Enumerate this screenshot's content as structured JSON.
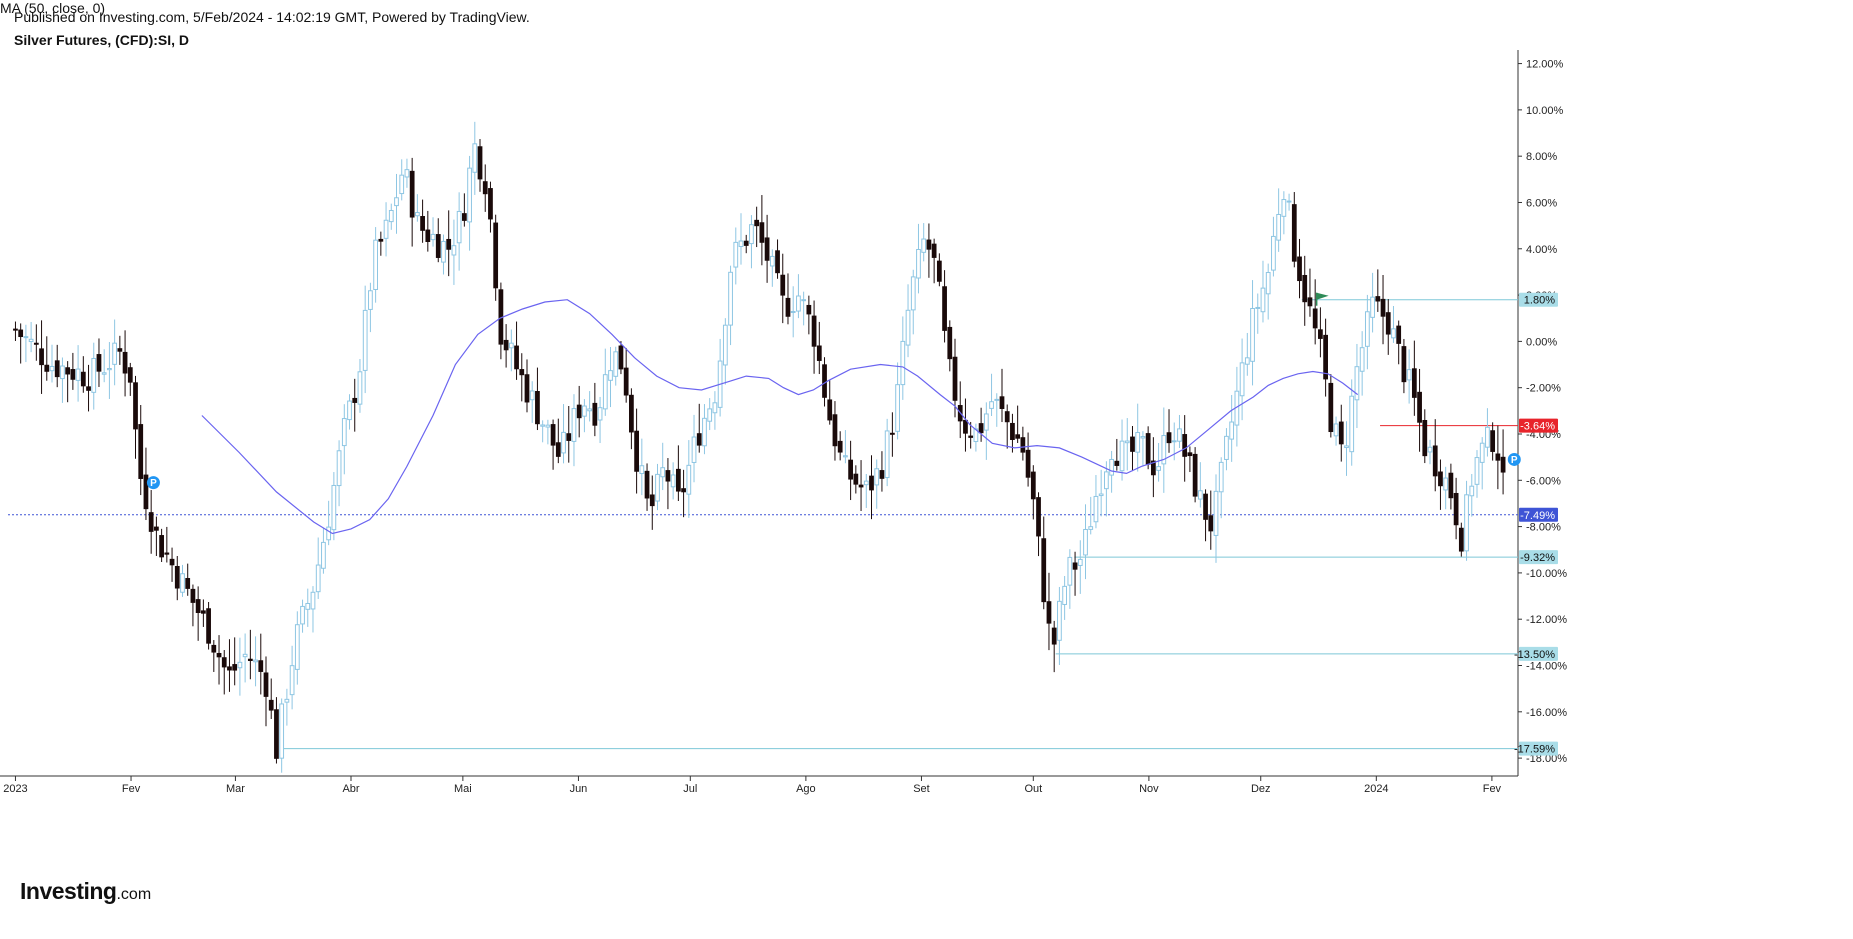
{
  "header": {
    "published": "Published on Investing.com, 5/Feb/2024 - 14:02:19 GMT, Powered by TradingView.",
    "symbol": "Silver Futures, (CFD):SI, D",
    "indicator": "MA (50, close, 0)"
  },
  "logo": {
    "name": "Investing",
    "domain": ".com"
  },
  "colors": {
    "candle_up": "#8ec6e3",
    "candle_down": "#1a0a0a",
    "ma_line": "#6a64f0",
    "level_line": "#7ec8d8",
    "resistance": "#e8242b",
    "current": "#3e54d6",
    "flag": "#2e8b57",
    "marker": "#2196f3"
  },
  "chart_data": {
    "type": "candlestick",
    "y_unit": "%",
    "ylim": [
      -18.6,
      12.5
    ],
    "y_ticks": [
      12,
      10,
      8,
      6,
      4,
      2,
      0,
      -2,
      -4,
      -6,
      -8,
      -10,
      -12,
      -14,
      -16,
      -18
    ],
    "y_tick_labels": [
      "12.00%",
      "10.00%",
      "8.00%",
      "6.00%",
      "4.00%",
      "2.00%",
      "0.00%",
      "-2.00%",
      "-4.00%",
      "-6.00%",
      "-8.00%",
      "-10.00%",
      "-12.00%",
      "-14.00%",
      "-16.00%",
      "-18.00%"
    ],
    "x_labels": [
      "2023",
      "Fev",
      "Mar",
      "Abr",
      "Mai",
      "Jun",
      "Jul",
      "Ago",
      "Set",
      "Out",
      "Nov",
      "Dez",
      "2024",
      "Fev"
    ],
    "x_label_days": [
      0,
      31,
      59,
      90,
      120,
      151,
      181,
      212,
      243,
      273,
      304,
      334,
      365,
      396
    ],
    "x_range_days": [
      -2,
      403
    ],
    "price_path": [
      [
        0,
        0.5
      ],
      [
        10,
        -1.0
      ],
      [
        20,
        -1.5
      ],
      [
        28,
        -0.5
      ],
      [
        31,
        -1.5
      ],
      [
        33,
        -5.5
      ],
      [
        38,
        -8.5
      ],
      [
        45,
        -10.5
      ],
      [
        52,
        -12.5
      ],
      [
        57,
        -14.5
      ],
      [
        62,
        -13.5
      ],
      [
        67,
        -14.5
      ],
      [
        70,
        -17.59
      ],
      [
        75,
        -13.0
      ],
      [
        80,
        -10.5
      ],
      [
        84,
        -7.5
      ],
      [
        88,
        -4.0
      ],
      [
        92,
        -1.5
      ],
      [
        96,
        3.5
      ],
      [
        100,
        5.0
      ],
      [
        104,
        7.5
      ],
      [
        108,
        5.0
      ],
      [
        112,
        4.5
      ],
      [
        116,
        4.0
      ],
      [
        120,
        5.5
      ],
      [
        123,
        8.5
      ],
      [
        126,
        7.0
      ],
      [
        128,
        4.5
      ],
      [
        130,
        0.5
      ],
      [
        134,
        -1.0
      ],
      [
        140,
        -3.0
      ],
      [
        146,
        -5.0
      ],
      [
        152,
        -2.5
      ],
      [
        156,
        -3.0
      ],
      [
        160,
        -0.5
      ],
      [
        163,
        -1.0
      ],
      [
        166,
        -4.5
      ],
      [
        170,
        -7.5
      ],
      [
        174,
        -5.5
      ],
      [
        178,
        -7.0
      ],
      [
        183,
        -4.0
      ],
      [
        188,
        -2.0
      ],
      [
        192,
        3.5
      ],
      [
        198,
        5.0
      ],
      [
        202,
        3.5
      ],
      [
        206,
        1.5
      ],
      [
        210,
        2.0
      ],
      [
        214,
        0.5
      ],
      [
        218,
        -3.0
      ],
      [
        222,
        -5.5
      ],
      [
        228,
        -6.5
      ],
      [
        232,
        -5.5
      ],
      [
        236,
        -3.0
      ],
      [
        240,
        2.0
      ],
      [
        244,
        4.5
      ],
      [
        247,
        3.0
      ],
      [
        250,
        -1.0
      ],
      [
        254,
        -3.5
      ],
      [
        258,
        -4.0
      ],
      [
        262,
        -2.5
      ],
      [
        266,
        -3.5
      ],
      [
        270,
        -4.5
      ],
      [
        273,
        -7.0
      ],
      [
        276,
        -11.0
      ],
      [
        278,
        -13.5
      ],
      [
        282,
        -10.0
      ],
      [
        286,
        -9.32
      ],
      [
        290,
        -6.5
      ],
      [
        294,
        -4.5
      ],
      [
        298,
        -5.0
      ],
      [
        302,
        -4.5
      ],
      [
        306,
        -5.5
      ],
      [
        310,
        -3.5
      ],
      [
        314,
        -5.0
      ],
      [
        318,
        -7.0
      ],
      [
        321,
        -8.0
      ],
      [
        325,
        -4.5
      ],
      [
        328,
        -2.0
      ],
      [
        332,
        1.0
      ],
      [
        336,
        3.0
      ],
      [
        340,
        7.0
      ],
      [
        343,
        4.0
      ],
      [
        346,
        2.0
      ],
      [
        350,
        -0.5
      ],
      [
        353,
        -3.5
      ],
      [
        356,
        -5.0
      ],
      [
        360,
        -1.0
      ],
      [
        364,
        1.5
      ],
      [
        368,
        1.0
      ],
      [
        372,
        -1.0
      ],
      [
        375,
        -2.5
      ],
      [
        378,
        -4.5
      ],
      [
        382,
        -5.5
      ],
      [
        385,
        -6.5
      ],
      [
        388,
        -8.5
      ],
      [
        391,
        -5.5
      ],
      [
        394,
        -4.5
      ],
      [
        397,
        -4.0
      ],
      [
        400,
        -7.49
      ]
    ],
    "ma": {
      "name": "MA (50, close, 0)",
      "points": [
        [
          50,
          -3.2
        ],
        [
          60,
          -4.8
        ],
        [
          70,
          -6.5
        ],
        [
          80,
          -7.8
        ],
        [
          85,
          -8.3
        ],
        [
          90,
          -8.1
        ],
        [
          95,
          -7.7
        ],
        [
          100,
          -6.8
        ],
        [
          105,
          -5.4
        ],
        [
          112,
          -3.2
        ],
        [
          118,
          -1.0
        ],
        [
          124,
          0.3
        ],
        [
          130,
          1.0
        ],
        [
          136,
          1.4
        ],
        [
          142,
          1.7
        ],
        [
          148,
          1.8
        ],
        [
          154,
          1.2
        ],
        [
          160,
          0.3
        ],
        [
          166,
          -0.7
        ],
        [
          172,
          -1.5
        ],
        [
          178,
          -2.0
        ],
        [
          184,
          -2.1
        ],
        [
          190,
          -1.8
        ],
        [
          196,
          -1.5
        ],
        [
          202,
          -1.6
        ],
        [
          206,
          -2.0
        ],
        [
          210,
          -2.3
        ],
        [
          214,
          -2.1
        ],
        [
          218,
          -1.7
        ],
        [
          224,
          -1.2
        ],
        [
          232,
          -1.0
        ],
        [
          238,
          -1.1
        ],
        [
          242,
          -1.5
        ],
        [
          248,
          -2.3
        ],
        [
          252,
          -2.8
        ],
        [
          256,
          -3.6
        ],
        [
          262,
          -4.4
        ],
        [
          268,
          -4.6
        ],
        [
          274,
          -4.5
        ],
        [
          280,
          -4.6
        ],
        [
          286,
          -5.0
        ],
        [
          290,
          -5.3
        ],
        [
          294,
          -5.6
        ],
        [
          298,
          -5.7
        ],
        [
          302,
          -5.4
        ],
        [
          308,
          -5.1
        ],
        [
          314,
          -4.6
        ],
        [
          320,
          -3.8
        ],
        [
          326,
          -3.0
        ],
        [
          332,
          -2.4
        ],
        [
          336,
          -1.9
        ],
        [
          340,
          -1.6
        ],
        [
          344,
          -1.4
        ],
        [
          348,
          -1.3
        ],
        [
          352,
          -1.4
        ],
        [
          356,
          -1.8
        ],
        [
          360,
          -2.3
        ]
      ]
    },
    "levels": [
      {
        "value": 1.8,
        "label": "1.80%",
        "from_day": 345,
        "kind": "support"
      },
      {
        "value": -3.64,
        "label": "-3.64%",
        "from_day": 366,
        "kind": "resistance"
      },
      {
        "value": -7.49,
        "label": "-7.49%",
        "from_day": -2,
        "kind": "current"
      },
      {
        "value": -9.32,
        "label": "-9.32%",
        "from_day": 284,
        "kind": "support"
      },
      {
        "value": -13.5,
        "label": "-13.50%",
        "from_day": 279,
        "kind": "support"
      },
      {
        "value": -17.59,
        "label": "-17.59%",
        "from_day": 72,
        "kind": "support"
      }
    ],
    "markers": [
      {
        "type": "P",
        "day": 37,
        "value": -6.1
      },
      {
        "type": "P",
        "day": 402,
        "value": -5.1
      },
      {
        "type": "flag",
        "day": 349,
        "value": 1.8
      }
    ]
  }
}
